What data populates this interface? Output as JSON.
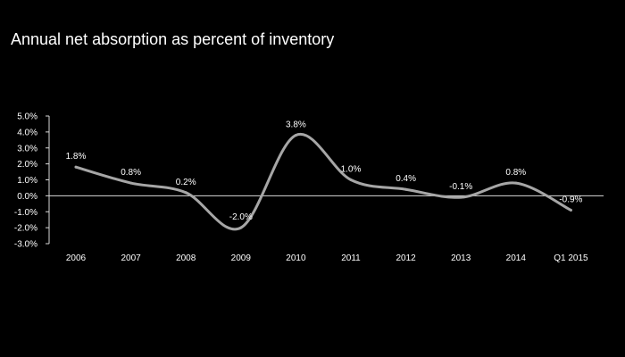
{
  "title": "Annual net absorption as percent of inventory",
  "chart_data": {
    "type": "line",
    "title": "Annual net absorption as percent of inventory",
    "categories": [
      "2006",
      "2007",
      "2008",
      "2009",
      "2010",
      "2011",
      "2012",
      "2013",
      "2014",
      "Q1 2015"
    ],
    "series": [
      {
        "values": [
          1.8,
          0.8,
          0.2,
          -2.0,
          3.8,
          1.0,
          0.4,
          -0.1,
          0.8,
          -0.9
        ],
        "labels": [
          "1.8%",
          "0.8%",
          "0.2%",
          "-2.0%",
          "3.8%",
          "1.0%",
          "0.4%",
          "-0.1%",
          "0.8%",
          "-0.9%"
        ]
      }
    ],
    "ylim": [
      -3.0,
      5.0
    ],
    "yticks": [
      5.0,
      4.0,
      3.0,
      2.0,
      1.0,
      0.0,
      -1.0,
      -2.0,
      -3.0
    ],
    "ytick_labels": [
      "5.0%",
      "4.0%",
      "3.0%",
      "2.0%",
      "1.0%",
      "0.0%",
      "-1.0%",
      "-2.0%",
      "-3.0%"
    ],
    "grid": false,
    "smooth": true,
    "colors": {
      "background": "#000000",
      "line": "#a6a6a6",
      "axis": "#d9d9d9",
      "text": "#ffffff"
    }
  }
}
